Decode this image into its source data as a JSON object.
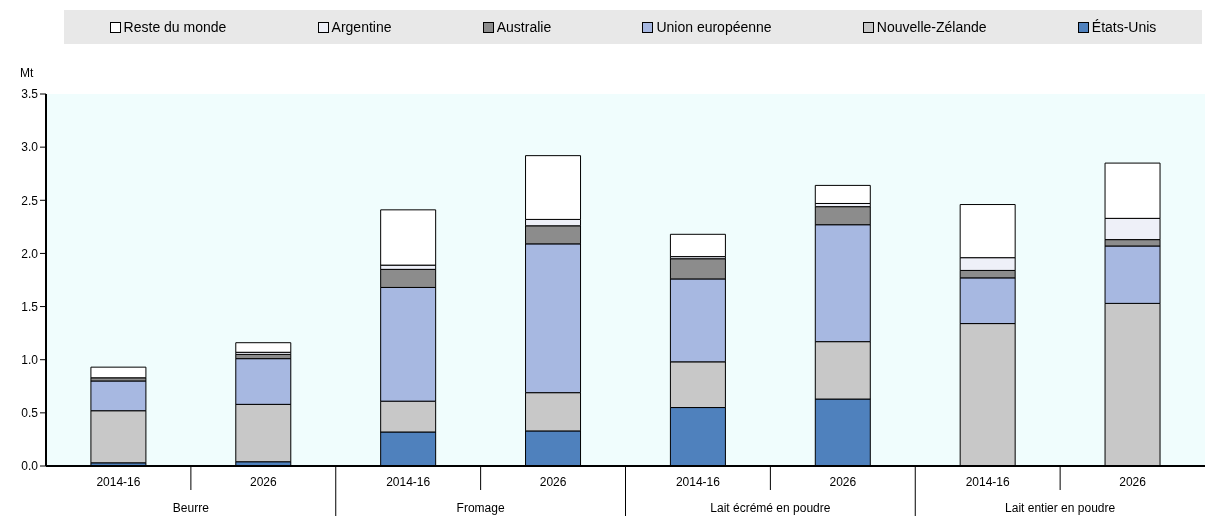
{
  "chart_data": {
    "type": "bar",
    "stacked": true,
    "ylabel": "Mt",
    "categories": [
      "2014-16",
      "2026",
      "2014-16",
      "2026",
      "2014-16",
      "2026",
      "2014-16",
      "2026"
    ],
    "annotations": [
      "Beurre",
      "Fromage",
      "Lait écrémé en poudre",
      "Lait entier en poudre"
    ],
    "ylim": [
      0,
      3.5
    ],
    "yticks": [
      {
        "value": 0,
        "label": "0.0"
      },
      {
        "value": 0.5,
        "label": "0.5"
      },
      {
        "value": 1,
        "label": "1.0"
      },
      {
        "value": 1.5,
        "label": "1.5"
      },
      {
        "value": 2,
        "label": "2.0"
      },
      {
        "value": 2.5,
        "label": "2.5"
      },
      {
        "value": 3,
        "label": "3.0"
      },
      {
        "value": 3.5,
        "label": "3.5"
      }
    ],
    "legend": "top",
    "grid": false,
    "series": [
      {
        "name": "États-Unis",
        "color": "#4f81bd",
        "values": [
          0.03,
          0.04,
          0.32,
          0.33,
          0.55,
          0.63,
          null,
          null
        ]
      },
      {
        "name": "Nouvelle-Zélande",
        "color": "#c8c8c8",
        "values": [
          0.49,
          0.54,
          0.29,
          0.36,
          0.43,
          0.54,
          1.34,
          1.53
        ]
      },
      {
        "name": "Union européenne",
        "color": "#a7b8e1",
        "values": [
          0.28,
          0.43,
          1.07,
          1.4,
          0.78,
          1.1,
          0.43,
          0.54
        ]
      },
      {
        "name": "Australie",
        "color": "#8c8c8c",
        "values": [
          0.03,
          0.04,
          0.17,
          0.17,
          0.19,
          0.17,
          0.07,
          0.06
        ]
      },
      {
        "name": "Argentine",
        "color": "#eef0f8",
        "values": [
          null,
          0.02,
          0.04,
          0.06,
          0.02,
          0.03,
          0.12,
          0.2
        ]
      },
      {
        "name": "Reste du monde",
        "color": "#ffffff",
        "values": [
          0.1,
          0.09,
          0.52,
          0.6,
          0.21,
          0.17,
          0.5,
          0.52
        ]
      }
    ]
  }
}
